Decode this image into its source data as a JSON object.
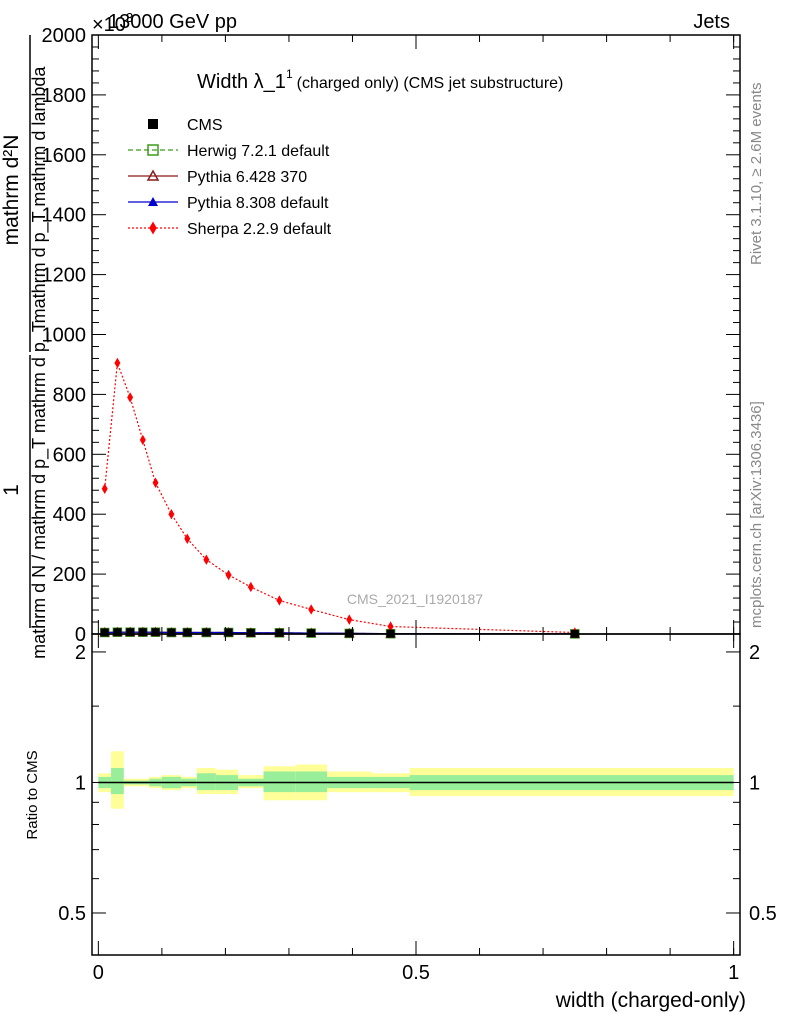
{
  "header": {
    "energy": "13000 GeV pp",
    "process": "Jets",
    "exponent": "×10",
    "exponent_power": "3"
  },
  "side_labels": {
    "rivet": "Rivet 3.1.10, ≥ 2.6M events",
    "mcplots": "mcplots.cern.ch [arXiv:1306.3436]"
  },
  "watermark": "CMS_2021_I1920187",
  "title": {
    "main": "Width λ_1",
    "superscript": "1",
    "sub": "(charged only) (CMS jet substructure)"
  },
  "ylabel_main": {
    "numerator_1": "1",
    "denominator_1": "mathrm d N / mathrm d p_T mathrm d p_T",
    "numerator_2": "mathrm d²N",
    "denominator_2": "mathrm d p_T mathrm d lambda"
  },
  "ylabel_ratio": "Ratio to CMS",
  "xlabel": "width (charged-only)",
  "legend": [
    {
      "name": "CMS",
      "color": "#000000",
      "marker": "square-filled",
      "line": "none"
    },
    {
      "name": "Herwig 7.2.1 default",
      "color": "#3a9a1a",
      "marker": "square-open",
      "line": "dashed"
    },
    {
      "name": "Pythia 6.428 370",
      "color": "#8b1a1a",
      "marker": "triangle-open",
      "line": "solid"
    },
    {
      "name": "Pythia 8.308 default",
      "color": "#0000cc",
      "marker": "triangle-filled",
      "line": "solid"
    },
    {
      "name": "Sherpa 2.2.9 default",
      "color": "#ff0000",
      "marker": "diamond-filled",
      "line": "dotted"
    }
  ],
  "chart_data": {
    "type": "line",
    "xlim": [
      -0.01,
      1.01
    ],
    "ylim_main": [
      0,
      2000
    ],
    "ylim_ratio": [
      0.4,
      2.2
    ],
    "x_ticks": [
      0,
      0.5,
      1
    ],
    "x_tick_labels": [
      "0",
      "0.5",
      "1"
    ],
    "y_ticks_main": [
      0,
      200,
      400,
      600,
      800,
      1000,
      1200,
      1400,
      1600,
      1800,
      2000
    ],
    "y_tick_labels_main": [
      "0",
      "200",
      "400",
      "600",
      "800",
      "1000",
      "1200",
      "1400",
      "1600",
      "1800",
      "2000"
    ],
    "y_ticks_ratio": [
      0.5,
      1,
      2
    ],
    "y_tick_labels_ratio": [
      "0.5",
      "1",
      "2"
    ],
    "y_scale_ratio": "log",
    "x": [
      0.01,
      0.03,
      0.05,
      0.07,
      0.09,
      0.115,
      0.14,
      0.17,
      0.205,
      0.24,
      0.285,
      0.335,
      0.395,
      0.46,
      0.75
    ],
    "series": [
      {
        "name": "CMS",
        "values": [
          5,
          6,
          6,
          6,
          6,
          5,
          5,
          5,
          5,
          4,
          4,
          3,
          2,
          1,
          0.5
        ]
      },
      {
        "name": "Herwig 7.2.1 default",
        "values": [
          5,
          6,
          6,
          6,
          6,
          5,
          5,
          5,
          5,
          4,
          4,
          3,
          2,
          1,
          0.5
        ]
      },
      {
        "name": "Pythia 6.428 370",
        "values": [
          5,
          6,
          6,
          6,
          6,
          5,
          5,
          5,
          5,
          4,
          4,
          3,
          2,
          1,
          0.5
        ]
      },
      {
        "name": "Pythia 8.308 default",
        "values": [
          5,
          6,
          6,
          6,
          6,
          5,
          5,
          5,
          5,
          4,
          4,
          3,
          2,
          1,
          0.5
        ]
      },
      {
        "name": "Sherpa 2.2.9 default",
        "values": [
          485,
          905,
          790,
          648,
          505,
          400,
          318,
          248,
          197,
          157,
          112,
          82,
          48,
          25,
          5
        ]
      }
    ],
    "ratio_bands": [
      {
        "x0": 0.0,
        "x1": 0.02,
        "inner": [
          0.97,
          1.03
        ],
        "outer": [
          0.95,
          1.05
        ]
      },
      {
        "x0": 0.02,
        "x1": 0.04,
        "inner": [
          0.94,
          1.08
        ],
        "outer": [
          0.87,
          1.18
        ]
      },
      {
        "x0": 0.04,
        "x1": 0.08,
        "inner": [
          0.99,
          1.01
        ],
        "outer": [
          0.98,
          1.02
        ]
      },
      {
        "x0": 0.08,
        "x1": 0.1,
        "inner": [
          0.98,
          1.02
        ],
        "outer": [
          0.97,
          1.03
        ]
      },
      {
        "x0": 0.1,
        "x1": 0.13,
        "inner": [
          0.97,
          1.03
        ],
        "outer": [
          0.96,
          1.04
        ]
      },
      {
        "x0": 0.13,
        "x1": 0.155,
        "inner": [
          0.98,
          1.02
        ],
        "outer": [
          0.97,
          1.03
        ]
      },
      {
        "x0": 0.155,
        "x1": 0.185,
        "inner": [
          0.96,
          1.05
        ],
        "outer": [
          0.94,
          1.08
        ]
      },
      {
        "x0": 0.185,
        "x1": 0.22,
        "inner": [
          0.96,
          1.04
        ],
        "outer": [
          0.94,
          1.07
        ]
      },
      {
        "x0": 0.22,
        "x1": 0.26,
        "inner": [
          0.98,
          1.02
        ],
        "outer": [
          0.97,
          1.04
        ]
      },
      {
        "x0": 0.26,
        "x1": 0.31,
        "inner": [
          0.95,
          1.06
        ],
        "outer": [
          0.91,
          1.09
        ]
      },
      {
        "x0": 0.31,
        "x1": 0.36,
        "inner": [
          0.95,
          1.06
        ],
        "outer": [
          0.91,
          1.1
        ]
      },
      {
        "x0": 0.36,
        "x1": 0.43,
        "inner": [
          0.97,
          1.03
        ],
        "outer": [
          0.95,
          1.06
        ]
      },
      {
        "x0": 0.43,
        "x1": 0.49,
        "inner": [
          0.97,
          1.03
        ],
        "outer": [
          0.95,
          1.05
        ]
      },
      {
        "x0": 0.49,
        "x1": 1.0,
        "inner": [
          0.96,
          1.04
        ],
        "outer": [
          0.93,
          1.08
        ]
      }
    ]
  }
}
